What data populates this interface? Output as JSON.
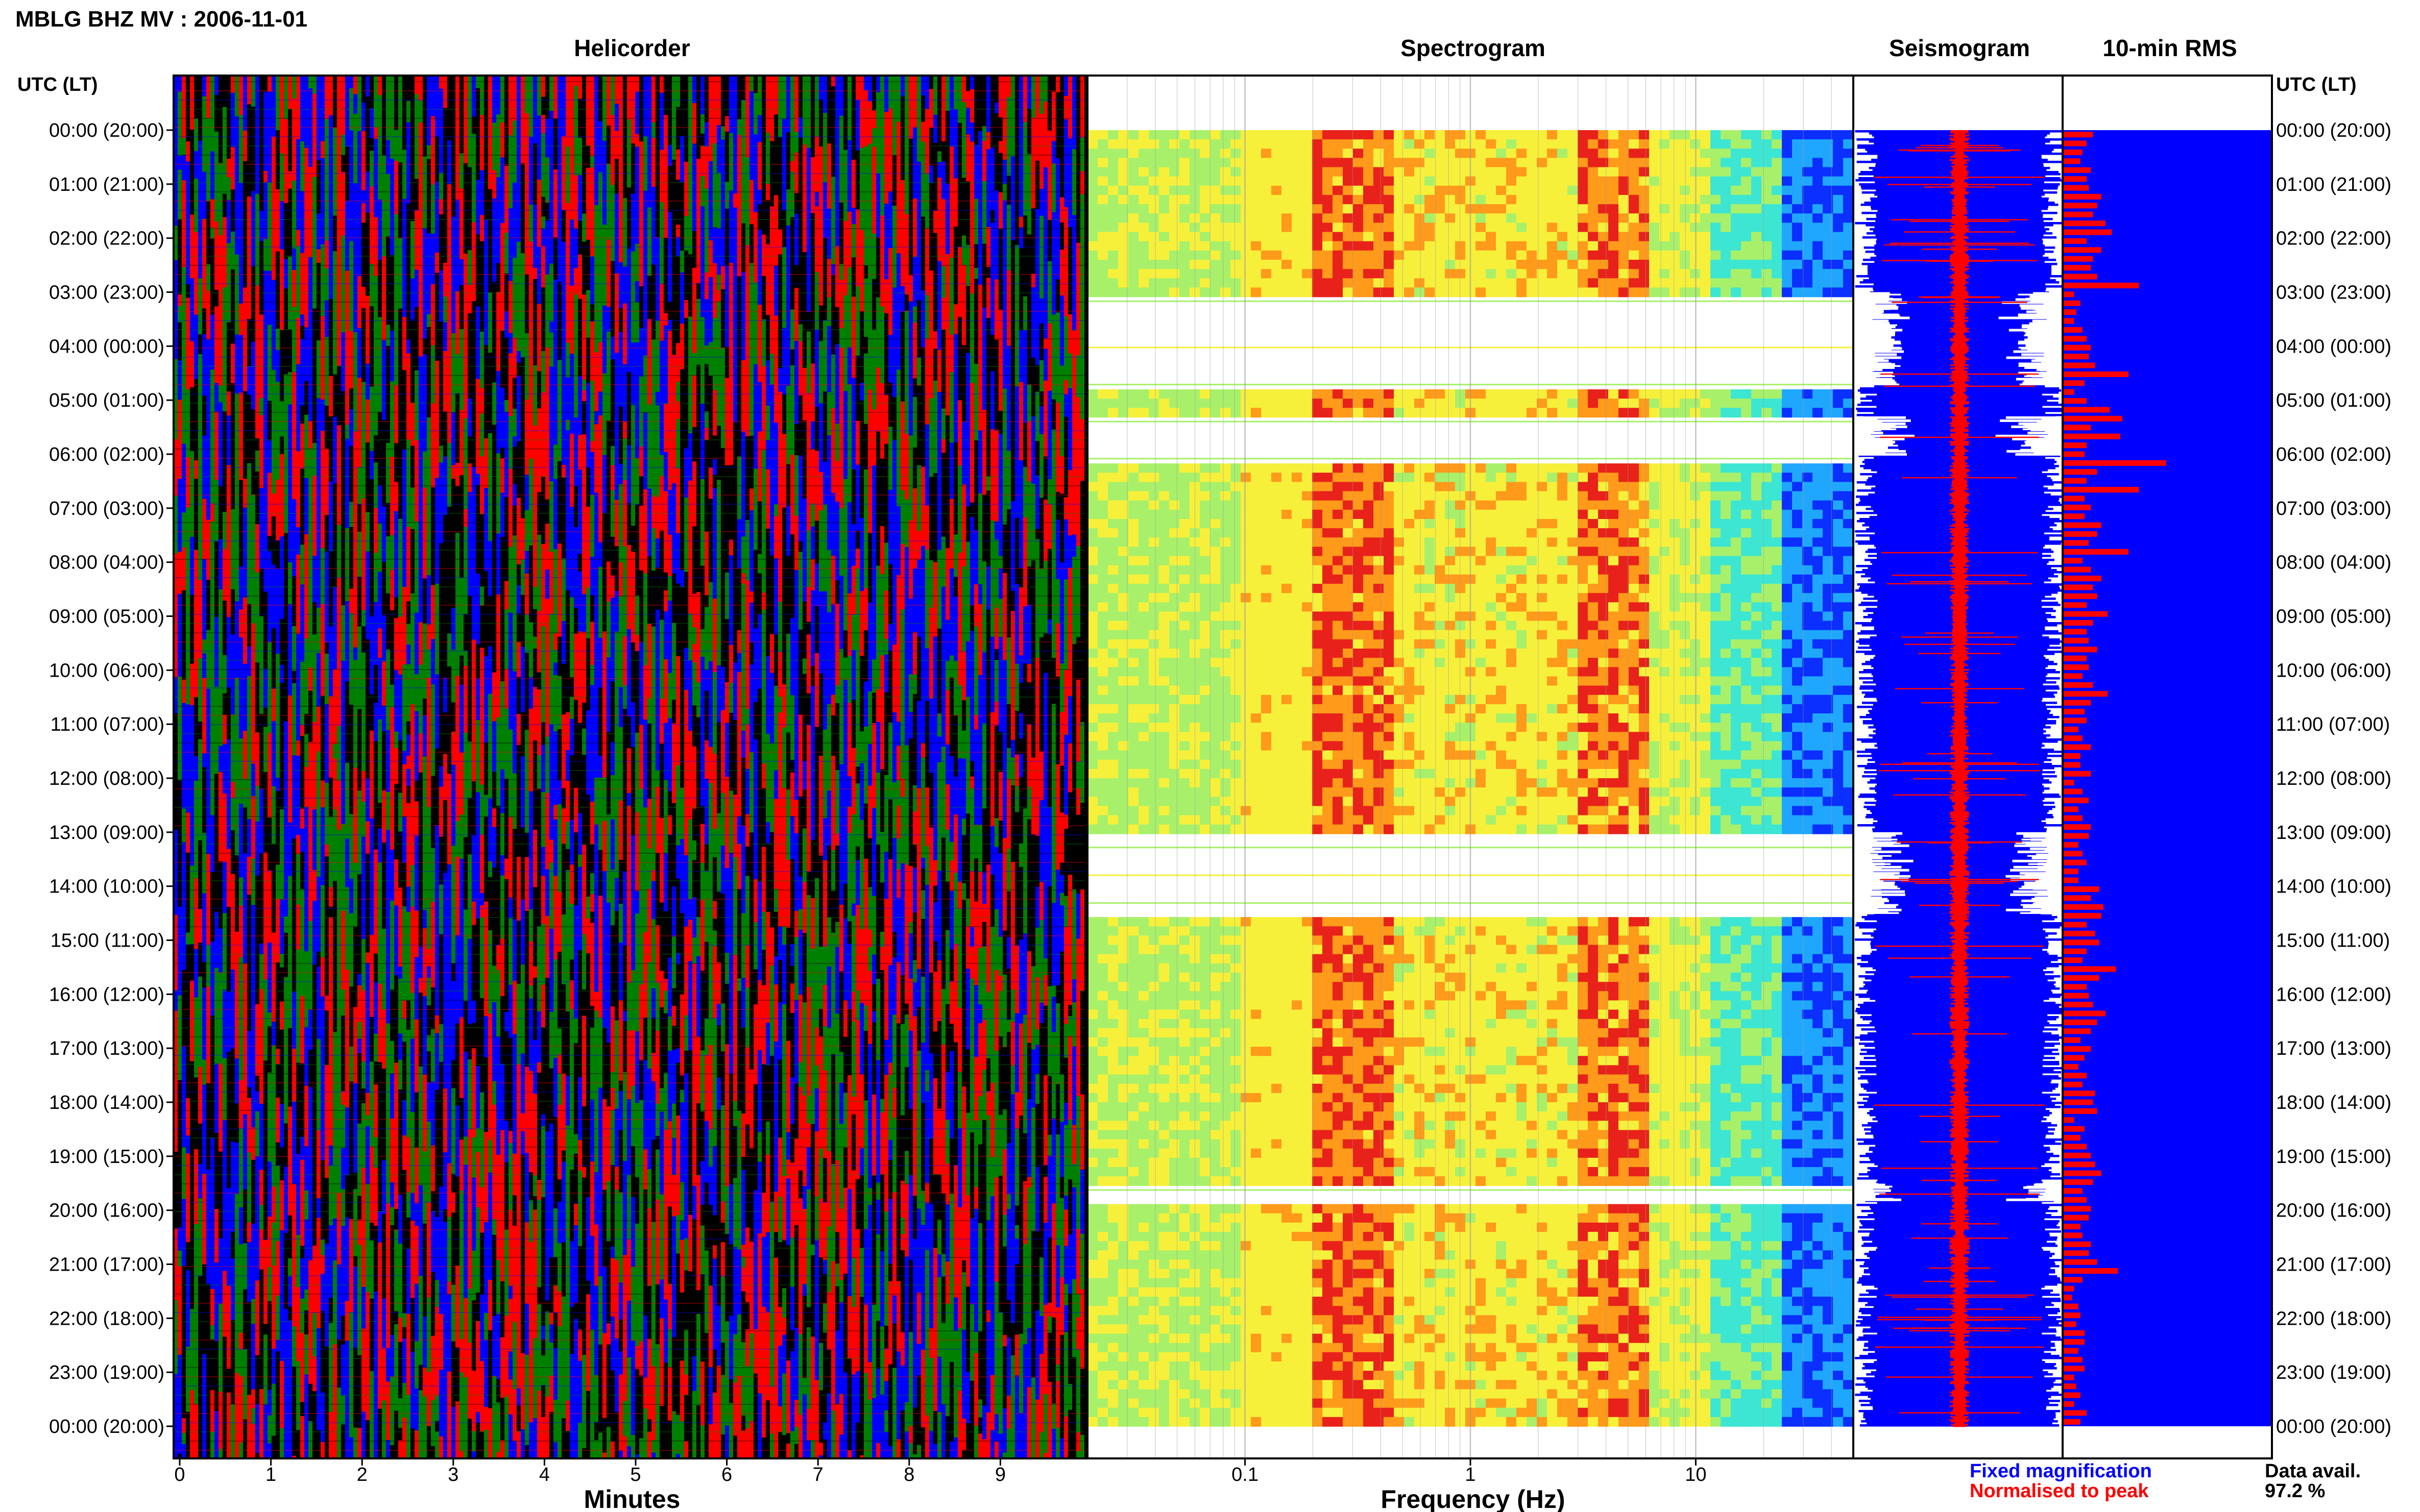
{
  "header": {
    "title": "MBLG BHZ MV : 2006-11-01"
  },
  "panels": {
    "helicorder": {
      "title": "Helicorder",
      "xlabel": "Minutes"
    },
    "spectrogram": {
      "title": "Spectrogram",
      "xlabel": "Frequency (Hz)"
    },
    "seismogram": {
      "title": "Seismogram"
    },
    "rms": {
      "title": "10-min RMS"
    }
  },
  "axis_headers": {
    "left": "UTC (LT)",
    "right": "UTC (LT)"
  },
  "legend": {
    "fixed": "Fixed magnification",
    "normalised": "Normalised to peak",
    "fixed_color": "#0000ff",
    "normalised_color": "#ff0000"
  },
  "data_availability": {
    "label": "Data avail.",
    "value": "97.2 %"
  },
  "colors": {
    "helicorder_traces": [
      "#000000",
      "#ff0000",
      "#0000ff",
      "#008000"
    ],
    "rms_background": "#0000ff",
    "rms_bars": "#ff0000",
    "seismogram_fill": "#0000ff",
    "seismogram_spikes": "#ff0000"
  },
  "chart_data": [
    {
      "type": "line",
      "panel": "helicorder",
      "title": "Helicorder",
      "xlabel": "Minutes",
      "xticks": [
        "0",
        "1",
        "2",
        "3",
        "4",
        "5",
        "6",
        "7",
        "8",
        "9"
      ],
      "xlim": [
        0,
        10
      ],
      "row_labels": [
        "00:00 (20:00)",
        "01:00 (21:00)",
        "02:00 (22:00)",
        "03:00 (23:00)",
        "04:00 (00:00)",
        "05:00 (01:00)",
        "06:00 (02:00)",
        "07:00 (03:00)",
        "08:00 (04:00)",
        "09:00 (05:00)",
        "10:00 (06:00)",
        "11:00 (07:00)",
        "12:00 (08:00)",
        "13:00 (09:00)",
        "14:00 (10:00)",
        "15:00 (11:00)",
        "16:00 (12:00)",
        "17:00 (13:00)",
        "18:00 (14:00)",
        "19:00 (15:00)",
        "20:00 (16:00)",
        "21:00 (17:00)",
        "22:00 (18:00)",
        "23:00 (19:00)",
        "00:00 (20:00)"
      ]
    },
    {
      "type": "heatmap",
      "panel": "spectrogram",
      "title": "Spectrogram",
      "xlabel": "Frequency (Hz)",
      "xscale": "log",
      "xticks": [
        "0.1",
        "1",
        "10"
      ],
      "xlim": [
        0.02,
        50
      ],
      "peak_bands_hz": [
        [
          0.2,
          0.4
        ],
        [
          3,
          6
        ]
      ],
      "gap_rows_hours": [
        [
          3.0,
          4.7
        ],
        [
          5.3,
          6.0
        ],
        [
          13.0,
          14.5
        ],
        [
          19.5,
          19.8
        ]
      ]
    },
    {
      "type": "line",
      "panel": "seismogram",
      "title": "Seismogram",
      "series": [
        {
          "name": "Fixed magnification",
          "color": "#0000ff"
        },
        {
          "name": "Normalised to peak",
          "color": "#ff0000"
        }
      ]
    },
    {
      "type": "bar",
      "panel": "rms",
      "title": "10-min RMS",
      "orientation": "horizontal",
      "xlim": [
        0,
        1
      ],
      "values": [
        0.14,
        0.11,
        0.09,
        0.08,
        0.13,
        0.11,
        0.12,
        0.18,
        0.16,
        0.14,
        0.2,
        0.23,
        0.11,
        0.18,
        0.14,
        0.13,
        0.16,
        0.36,
        0.05,
        0.08,
        0.06,
        0.05,
        0.09,
        0.11,
        0.13,
        0.12,
        0.15,
        0.31,
        0.1,
        0.05,
        0.11,
        0.22,
        0.28,
        0.13,
        0.27,
        0.11,
        0.1,
        0.49,
        0.16,
        0.11,
        0.36,
        0.1,
        0.13,
        0.1,
        0.18,
        0.16,
        0.12,
        0.31,
        0.09,
        0.13,
        0.18,
        0.14,
        0.16,
        0.11,
        0.21,
        0.14,
        0.11,
        0.12,
        0.16,
        0.11,
        0.12,
        0.09,
        0.14,
        0.21,
        0.13,
        0.1,
        0.11,
        0.07,
        0.09,
        0.13,
        0.08,
        0.08,
        0.13,
        0.05,
        0.09,
        0.12,
        0.07,
        0.09,
        0.13,
        0.12,
        0.07,
        0.09,
        0.11,
        0.07,
        0.07,
        0.17,
        0.13,
        0.19,
        0.18,
        0.11,
        0.15,
        0.17,
        0.11,
        0.09,
        0.25,
        0.17,
        0.11,
        0.12,
        0.14,
        0.2,
        0.16,
        0.13,
        0.08,
        0.13,
        0.1,
        0.07,
        0.11,
        0.09,
        0.15,
        0.14,
        0.16,
        0.05,
        0.1,
        0.08,
        0.11,
        0.13,
        0.15,
        0.18,
        0.14,
        0.09,
        0.11,
        0.13,
        0.12,
        0.08,
        0.09,
        0.13,
        0.12,
        0.16,
        0.26,
        0.09,
        0.05,
        0.04,
        0.07,
        0.08,
        0.06,
        0.1,
        0.1,
        0.07,
        0.09,
        0.1,
        0.05,
        0.06,
        0.08,
        0.05,
        0.11,
        0.08
      ]
    }
  ]
}
